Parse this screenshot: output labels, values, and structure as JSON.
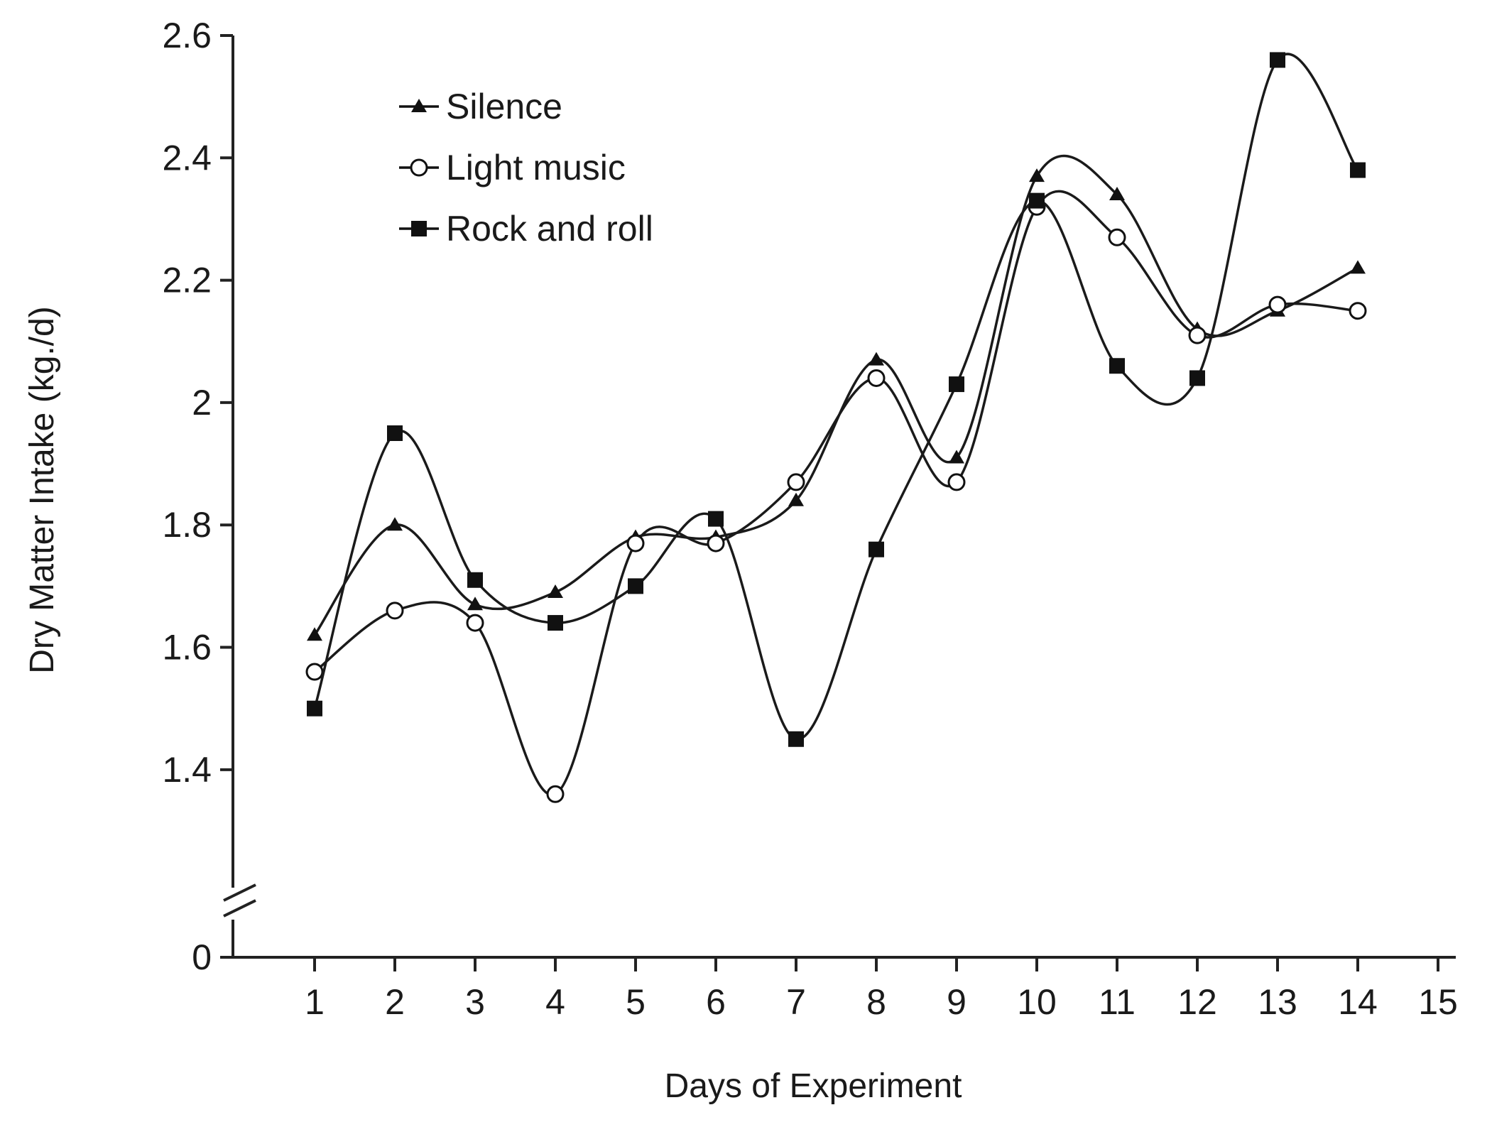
{
  "chart_data": {
    "type": "line",
    "title": "",
    "xlabel": "Days of Experiment",
    "ylabel": "Dry Matter Intake (kg./d)",
    "x": [
      1,
      2,
      3,
      4,
      5,
      6,
      7,
      8,
      9,
      10,
      11,
      12,
      13,
      14
    ],
    "x_ticks": [
      "1",
      "2",
      "3",
      "4",
      "5",
      "6",
      "7",
      "8",
      "9",
      "10",
      "11",
      "12",
      "13",
      "14",
      "15"
    ],
    "y_ticks": [
      "0",
      "1.4",
      "1.6",
      "1.8",
      "2",
      "2.2",
      "2.4",
      "2.6"
    ],
    "ylim": [
      1.3,
      2.6
    ],
    "y_axis_break": true,
    "grid": false,
    "legend_position": "top-left",
    "series": [
      {
        "name": "Silence",
        "marker": "triangle-filled",
        "values": [
          1.62,
          1.8,
          1.67,
          1.69,
          1.78,
          1.78,
          1.84,
          2.07,
          1.91,
          2.37,
          2.34,
          2.12,
          2.15,
          2.22
        ]
      },
      {
        "name": "Light music",
        "marker": "circle-open",
        "values": [
          1.56,
          1.66,
          1.64,
          1.36,
          1.77,
          1.77,
          1.87,
          2.04,
          1.87,
          2.32,
          2.27,
          2.11,
          2.16,
          2.15
        ]
      },
      {
        "name": "Rock and roll",
        "marker": "square-filled",
        "values": [
          1.5,
          1.95,
          1.71,
          1.64,
          1.7,
          1.81,
          1.45,
          1.76,
          2.03,
          2.33,
          2.06,
          2.04,
          2.56,
          2.38
        ]
      }
    ]
  }
}
